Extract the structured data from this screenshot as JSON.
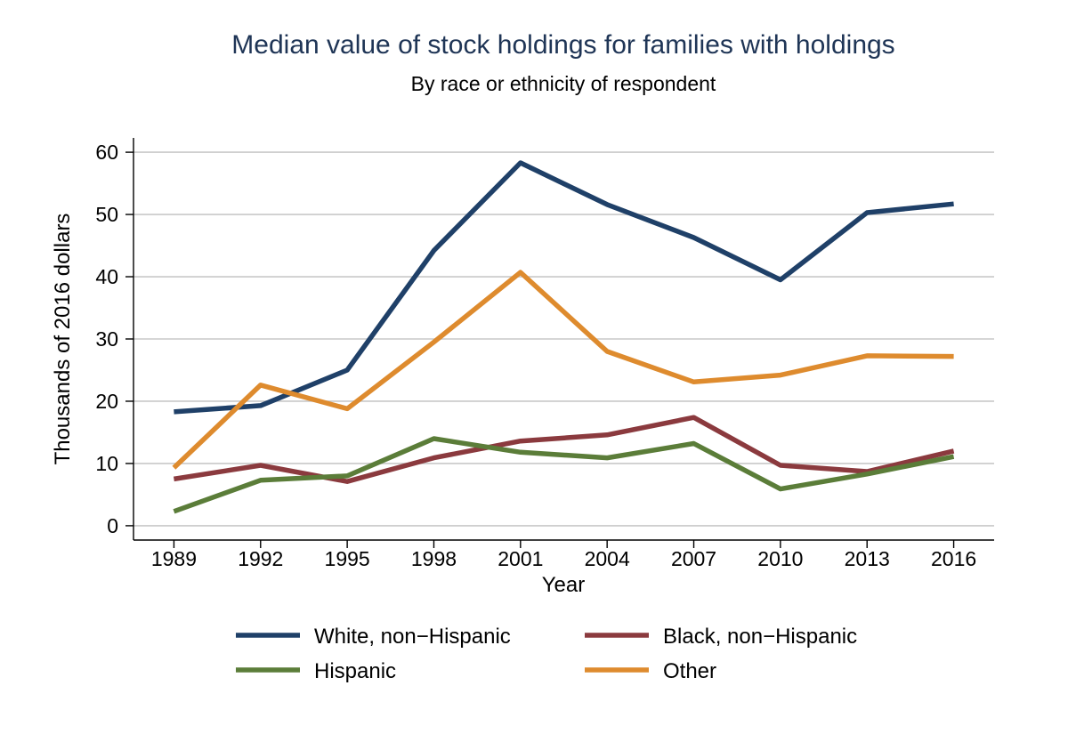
{
  "chart_data": {
    "type": "line",
    "title": "Median value of stock holdings for families with holdings",
    "subtitle": "By race or ethnicity of respondent",
    "xlabel": "Year",
    "ylabel": "Thousands of 2016 dollars",
    "x": [
      1989,
      1992,
      1995,
      1998,
      2001,
      2004,
      2007,
      2010,
      2013,
      2016
    ],
    "x_tick_labels": [
      "1989",
      "1992",
      "1995",
      "1998",
      "2001",
      "2004",
      "2007",
      "2010",
      "2013",
      "2016"
    ],
    "y_ticks": [
      0,
      10,
      20,
      30,
      40,
      50,
      60
    ],
    "y_tick_labels": [
      "0",
      "10",
      "20",
      "30",
      "40",
      "50",
      "60"
    ],
    "ylim": [
      -2.3,
      62.3
    ],
    "xlim": [
      1987.6,
      2017.4
    ],
    "grid": true,
    "legend_position": "bottom",
    "title_color": "#1f3556",
    "series": [
      {
        "name": "White, non−Hispanic",
        "color": "#1f4068",
        "values": [
          18.3,
          19.3,
          25.0,
          44.2,
          58.3,
          51.6,
          46.3,
          39.5,
          50.3,
          51.7
        ]
      },
      {
        "name": "Black, non−Hispanic",
        "color": "#8b3a3e",
        "values": [
          7.5,
          9.7,
          7.1,
          10.9,
          13.6,
          14.6,
          17.4,
          9.7,
          8.7,
          12.0
        ]
      },
      {
        "name": "Hispanic",
        "color": "#5b7d39",
        "values": [
          2.3,
          7.3,
          8.0,
          14.0,
          11.8,
          10.9,
          13.2,
          5.9,
          8.3,
          11.1
        ]
      },
      {
        "name": "Other",
        "color": "#de8b2e",
        "values": [
          9.3,
          22.6,
          18.8,
          29.5,
          40.7,
          28.0,
          23.1,
          24.2,
          27.3,
          27.2
        ]
      }
    ]
  }
}
